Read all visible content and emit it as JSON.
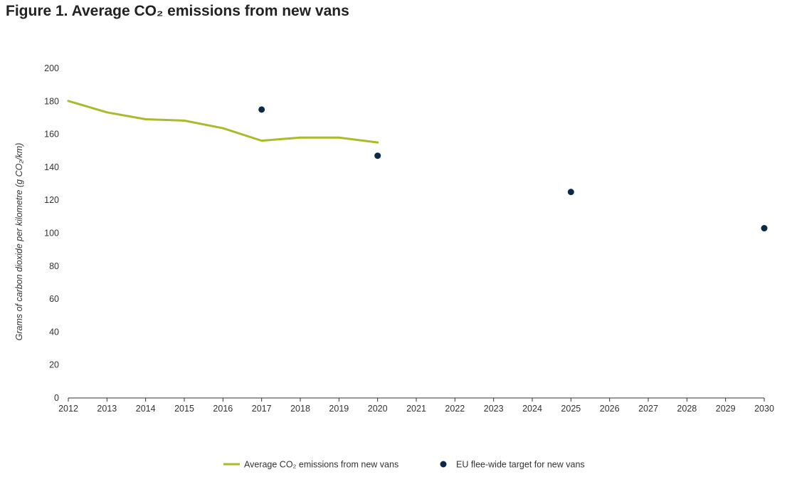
{
  "title": "Figure 1. Average CO₂ emissions from new vans",
  "colors": {
    "line": "#a9bb2a",
    "dots": "#0b2a4a",
    "axis": "#333333"
  },
  "chart_data": {
    "type": "line",
    "title": "Figure 1. Average CO₂ emissions from new vans",
    "xlabel": "",
    "ylabel": "Grams of carbon dioxide per kilometre (g CO₂/km)",
    "x_ticks": [
      "2012",
      "2013",
      "2014",
      "2015",
      "2016",
      "2017",
      "2018",
      "2019",
      "2020",
      "2021",
      "2022",
      "2023",
      "2024",
      "2025",
      "2026",
      "2027",
      "2028",
      "2029",
      "2030"
    ],
    "y_ticks": [
      "0",
      "20",
      "40",
      "60",
      "80",
      "100",
      "120",
      "140",
      "160",
      "180",
      "200"
    ],
    "xlim": [
      2012,
      2030
    ],
    "ylim": [
      0,
      200
    ],
    "grid": false,
    "legend": "bottom-center",
    "series": [
      {
        "name": "Average CO₂ emissions from new vans",
        "type": "line",
        "x": [
          2012,
          2013,
          2014,
          2015,
          2016,
          2017,
          2018,
          2019,
          2020
        ],
        "y": [
          180.2,
          173.3,
          169.1,
          168.3,
          163.7,
          156.1,
          158.0,
          158.0,
          155.0
        ]
      },
      {
        "name": "EU flee-wide target for new vans",
        "type": "scatter",
        "x": [
          2017,
          2020,
          2025,
          2030
        ],
        "y": [
          175,
          147,
          125,
          103
        ]
      }
    ]
  }
}
